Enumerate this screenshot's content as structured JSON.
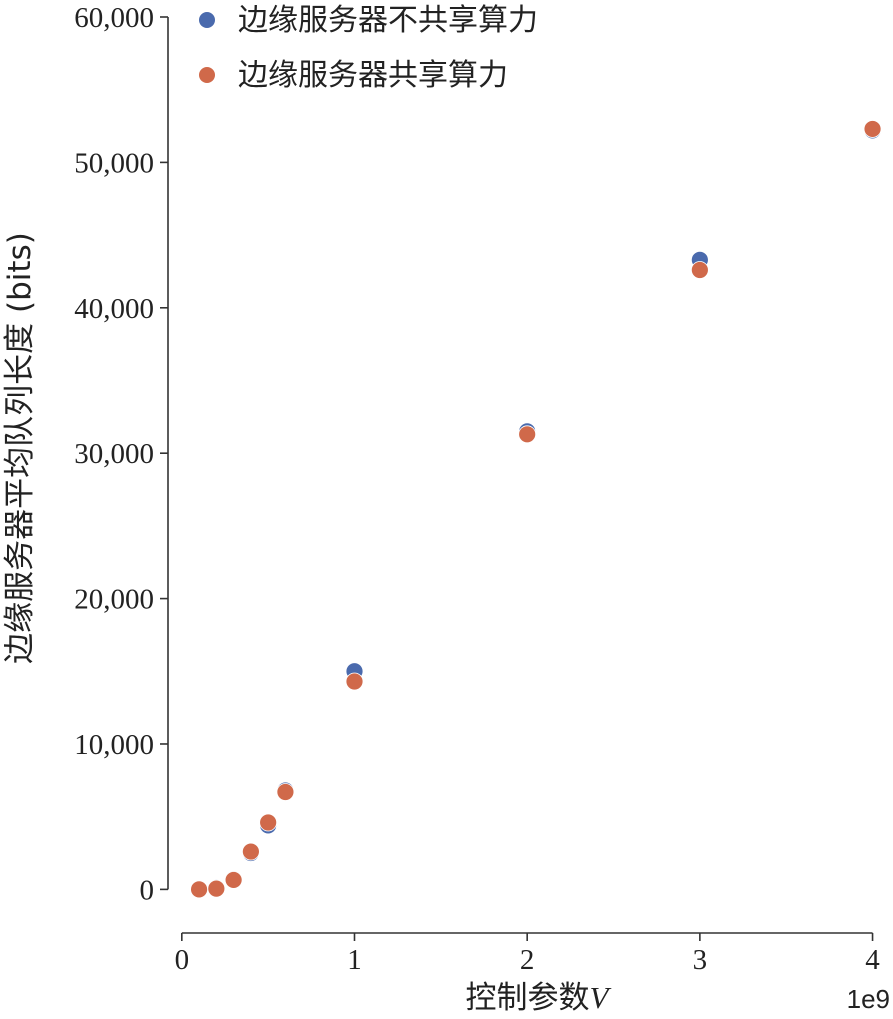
{
  "chart_data": {
    "type": "scatter",
    "xlabel_text": "控制参数",
    "xlabel_var": "V",
    "ylabel": "边缘服务器平均队列长度 (bits)",
    "x_offset_label": "1e9",
    "xlim": [
      -0.08,
      4.02
    ],
    "ylim": [
      -3000,
      60000
    ],
    "xticks": [
      0,
      1,
      2,
      3,
      4
    ],
    "xtick_labels": [
      "0",
      "1",
      "2",
      "3",
      "4"
    ],
    "yticks": [
      0,
      10000,
      20000,
      30000,
      40000,
      50000,
      60000
    ],
    "ytick_labels": [
      "0",
      "10,000",
      "20,000",
      "30,000",
      "40,000",
      "50,000",
      "60,000"
    ],
    "legend_position": "top-left",
    "series": [
      {
        "name": "边缘服务器不共享算力",
        "color": "#4a6aad",
        "x": [
          0.1,
          0.2,
          0.3,
          0.4,
          0.5,
          0.6,
          1,
          2,
          3,
          4
        ],
        "y": [
          0,
          100,
          700,
          2500,
          4400,
          6800,
          15000,
          31500,
          43300,
          52200
        ]
      },
      {
        "name": "边缘服务器共享算力",
        "color": "#d0694a",
        "x": [
          0.1,
          0.2,
          0.3,
          0.4,
          0.5,
          0.6,
          1,
          2,
          3,
          4
        ],
        "y": [
          0,
          50,
          650,
          2600,
          4600,
          6700,
          14300,
          31300,
          42600,
          52300
        ]
      }
    ]
  }
}
